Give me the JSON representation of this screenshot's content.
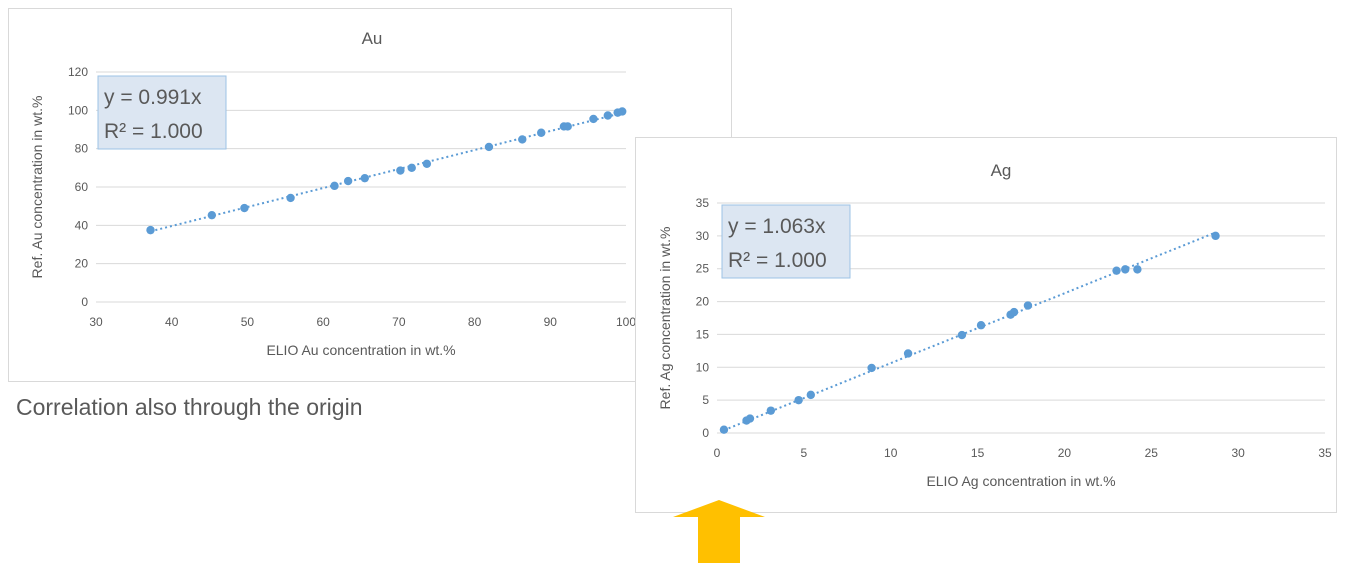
{
  "caption": "Correlation also through the origin",
  "colors": {
    "marker": "#5b9bd5",
    "grid": "#d9d9d9",
    "annotation_bg": "#dce6f2",
    "annotation_border": "#9dc3e6",
    "arrow": "#ffc000",
    "text": "#595959"
  },
  "chart_data": [
    {
      "type": "scatter",
      "title": "Au",
      "xlabel": "ELIO Au concentration in wt.%",
      "ylabel": "Ref. Au concentration in wt.%",
      "xlim": [
        30,
        100
      ],
      "ylim": [
        0,
        120
      ],
      "xticks": [
        "30",
        "40",
        "50",
        "60",
        "70",
        "80",
        "90",
        "100"
      ],
      "yticks": [
        "0",
        "20",
        "40",
        "60",
        "80",
        "100",
        "120"
      ],
      "grid": true,
      "trendline": {
        "type": "linear-through-origin",
        "slope": 0.991,
        "style": "dotted"
      },
      "annotation": [
        "y = 0.991x",
        "R² = 1.000"
      ],
      "points": [
        [
          37.2,
          37.5
        ],
        [
          45.3,
          45.3
        ],
        [
          49.6,
          49.0
        ],
        [
          55.7,
          54.3
        ],
        [
          61.5,
          60.6
        ],
        [
          63.3,
          63.1
        ],
        [
          65.5,
          64.6
        ],
        [
          70.2,
          68.6
        ],
        [
          71.7,
          70.0
        ],
        [
          73.7,
          72.1
        ],
        [
          81.9,
          80.9
        ],
        [
          86.3,
          84.8
        ],
        [
          88.8,
          88.3
        ],
        [
          91.8,
          91.6
        ],
        [
          92.3,
          91.6
        ],
        [
          95.7,
          95.5
        ],
        [
          97.6,
          97.3
        ],
        [
          98.9,
          98.8
        ],
        [
          99.5,
          99.4
        ]
      ]
    },
    {
      "type": "scatter",
      "title": "Ag",
      "xlabel": "ELIO Ag concentration in wt.%",
      "ylabel": "Ref. Ag concentration in wt.%",
      "xlim": [
        0,
        35
      ],
      "ylim": [
        0,
        35
      ],
      "xticks": [
        "0",
        "5",
        "10",
        "15",
        "20",
        "25",
        "30",
        "35"
      ],
      "yticks": [
        "0",
        "5",
        "10",
        "15",
        "20",
        "25",
        "30",
        "35"
      ],
      "grid": true,
      "trendline": {
        "type": "linear-through-origin",
        "slope": 1.063,
        "style": "dotted"
      },
      "annotation": [
        "y = 1.063x",
        "R² = 1.000"
      ],
      "points": [
        [
          0.4,
          0.5
        ],
        [
          1.7,
          1.9
        ],
        [
          1.9,
          2.2
        ],
        [
          3.1,
          3.4
        ],
        [
          4.7,
          5.0
        ],
        [
          5.4,
          5.8
        ],
        [
          8.9,
          9.9
        ],
        [
          11.0,
          12.1
        ],
        [
          14.1,
          14.9
        ],
        [
          15.2,
          16.4
        ],
        [
          16.9,
          18.0
        ],
        [
          17.1,
          18.4
        ],
        [
          17.9,
          19.4
        ],
        [
          23.0,
          24.7
        ],
        [
          23.5,
          24.9
        ],
        [
          24.2,
          24.9
        ],
        [
          28.7,
          30.0
        ]
      ]
    }
  ]
}
